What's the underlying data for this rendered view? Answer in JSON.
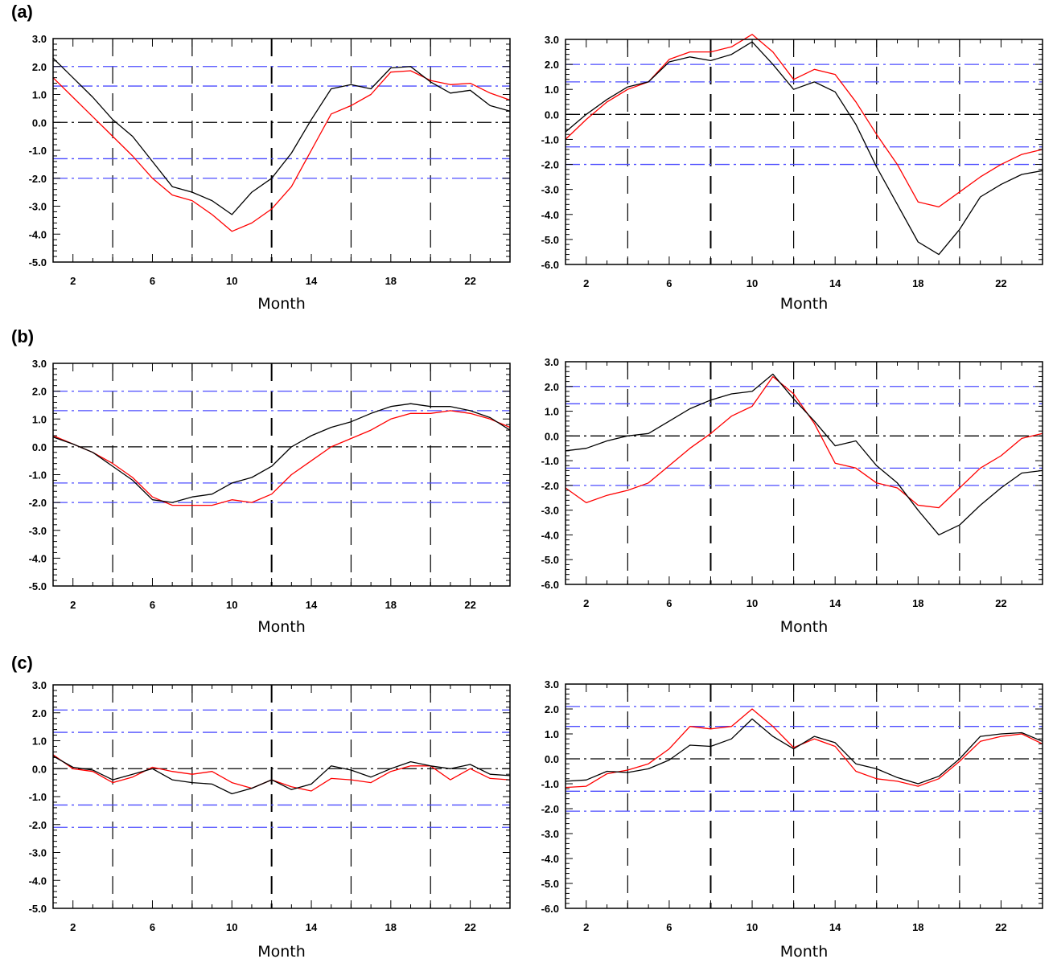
{
  "figure": {
    "row_labels": [
      "(a)",
      "(b)",
      "(c)"
    ]
  },
  "chart_data": [
    {
      "type": "line",
      "row": 0,
      "col": 0,
      "x": [
        1,
        2,
        3,
        4,
        5,
        6,
        7,
        8,
        9,
        10,
        11,
        12,
        13,
        14,
        15,
        16,
        17,
        18,
        19,
        20,
        21,
        22,
        23,
        24
      ],
      "xlim": [
        1,
        24
      ],
      "xticks": [
        2,
        6,
        10,
        14,
        18,
        22
      ],
      "xlabel": "Month",
      "ylim": [
        -5,
        3
      ],
      "yticks": [
        -5,
        -4,
        -3,
        -2,
        -1,
        0,
        1,
        2,
        3
      ],
      "ytick_labels": [
        "-5.0",
        "-4.0",
        "-3.0",
        "-2.0",
        "-1.0",
        "0.0",
        "1.0",
        "2.0",
        "3.0"
      ],
      "series": [
        {
          "color": "#ff0000",
          "values": [
            1.6,
            0.9,
            0.2,
            -0.5,
            -1.2,
            -2.0,
            -2.6,
            -2.8,
            -3.3,
            -3.9,
            -3.6,
            -3.1,
            -2.3,
            -1.0,
            0.3,
            0.6,
            1.0,
            1.8,
            1.85,
            1.5,
            1.35,
            1.4,
            1.05,
            0.8
          ]
        },
        {
          "color": "#000000",
          "values": [
            2.3,
            1.6,
            0.9,
            0.1,
            -0.5,
            -1.4,
            -2.3,
            -2.5,
            -2.8,
            -3.3,
            -2.5,
            -2.0,
            -1.1,
            0.1,
            1.2,
            1.35,
            1.2,
            1.95,
            2.0,
            1.45,
            1.05,
            1.15,
            0.6,
            0.4
          ]
        }
      ],
      "hlines": [
        {
          "y": 2.0,
          "color": "#4c4cff"
        },
        {
          "y": 1.3,
          "color": "#4c4cff"
        },
        {
          "y": 0.0,
          "color": "#000000"
        },
        {
          "y": -1.3,
          "color": "#4c4cff"
        },
        {
          "y": -2.0,
          "color": "#4c4cff"
        }
      ],
      "vlines": [
        4,
        8,
        12,
        16,
        20
      ]
    },
    {
      "type": "line",
      "row": 0,
      "col": 1,
      "x": [
        1,
        2,
        3,
        4,
        5,
        6,
        7,
        8,
        9,
        10,
        11,
        12,
        13,
        14,
        15,
        16,
        17,
        18,
        19,
        20,
        21,
        22,
        23,
        24
      ],
      "xlim": [
        1,
        24
      ],
      "xticks": [
        2,
        6,
        10,
        14,
        18,
        22
      ],
      "xlabel": "Month",
      "ylim": [
        -6,
        3
      ],
      "yticks": [
        -6,
        -5,
        -4,
        -3,
        -2,
        -1,
        0,
        1,
        2,
        3
      ],
      "ytick_labels": [
        "-6.0",
        "-5.0",
        "-4.0",
        "-3.0",
        "-2.0",
        "-1.0",
        "0.0",
        "1.0",
        "2.0",
        "3.0"
      ],
      "series": [
        {
          "color": "#ff0000",
          "values": [
            -1.0,
            -0.2,
            0.5,
            1.0,
            1.3,
            2.2,
            2.5,
            2.5,
            2.7,
            3.2,
            2.5,
            1.4,
            1.8,
            1.6,
            0.5,
            -0.8,
            -2.0,
            -3.5,
            -3.7,
            -3.1,
            -2.5,
            -2.0,
            -1.6,
            -1.4
          ]
        },
        {
          "color": "#000000",
          "values": [
            -0.7,
            0.0,
            0.6,
            1.1,
            1.3,
            2.1,
            2.3,
            2.15,
            2.4,
            2.9,
            2.0,
            1.0,
            1.3,
            0.9,
            -0.4,
            -2.1,
            -3.6,
            -5.1,
            -5.6,
            -4.6,
            -3.3,
            -2.8,
            -2.4,
            -2.25
          ]
        }
      ],
      "hlines": [
        {
          "y": 2.0,
          "color": "#4c4cff"
        },
        {
          "y": 1.3,
          "color": "#4c4cff"
        },
        {
          "y": 0.0,
          "color": "#000000"
        },
        {
          "y": -1.3,
          "color": "#4c4cff"
        },
        {
          "y": -2.0,
          "color": "#4c4cff"
        }
      ],
      "vlines": [
        4,
        8,
        12,
        16,
        20
      ]
    },
    {
      "type": "line",
      "row": 1,
      "col": 0,
      "x": [
        1,
        2,
        3,
        4,
        5,
        6,
        7,
        8,
        9,
        10,
        11,
        12,
        13,
        14,
        15,
        16,
        17,
        18,
        19,
        20,
        21,
        22,
        23,
        24
      ],
      "xlim": [
        1,
        24
      ],
      "xticks": [
        2,
        6,
        10,
        14,
        18,
        22
      ],
      "xlabel": "Month",
      "ylim": [
        -5,
        3
      ],
      "yticks": [
        -5,
        -4,
        -3,
        -2,
        -1,
        0,
        1,
        2,
        3
      ],
      "ytick_labels": [
        "-5.0",
        "-4.0",
        "-3.0",
        "-2.0",
        "-1.0",
        "0.0",
        "1.0",
        "2.0",
        "3.0"
      ],
      "series": [
        {
          "color": "#ff0000",
          "values": [
            0.4,
            0.1,
            -0.2,
            -0.6,
            -1.1,
            -1.8,
            -2.1,
            -2.1,
            -2.1,
            -1.9,
            -2.0,
            -1.7,
            -1.0,
            -0.5,
            0.0,
            0.3,
            0.6,
            1.0,
            1.2,
            1.2,
            1.3,
            1.2,
            1.0,
            0.7
          ]
        },
        {
          "color": "#000000",
          "values": [
            0.35,
            0.1,
            -0.2,
            -0.7,
            -1.2,
            -1.9,
            -2.0,
            -1.8,
            -1.7,
            -1.3,
            -1.1,
            -0.7,
            0.0,
            0.4,
            0.7,
            0.9,
            1.2,
            1.45,
            1.55,
            1.45,
            1.45,
            1.3,
            1.05,
            0.6
          ]
        }
      ],
      "hlines": [
        {
          "y": 2.0,
          "color": "#4c4cff"
        },
        {
          "y": 1.3,
          "color": "#4c4cff"
        },
        {
          "y": 0.0,
          "color": "#000000"
        },
        {
          "y": -1.3,
          "color": "#4c4cff"
        },
        {
          "y": -2.0,
          "color": "#4c4cff"
        }
      ],
      "vlines": [
        4,
        8,
        12,
        16,
        20
      ]
    },
    {
      "type": "line",
      "row": 1,
      "col": 1,
      "x": [
        1,
        2,
        3,
        4,
        5,
        6,
        7,
        8,
        9,
        10,
        11,
        12,
        13,
        14,
        15,
        16,
        17,
        18,
        19,
        20,
        21,
        22,
        23,
        24
      ],
      "xlim": [
        1,
        24
      ],
      "xticks": [
        2,
        6,
        10,
        14,
        18,
        22
      ],
      "xlabel": "Month",
      "ylim": [
        -6,
        3
      ],
      "yticks": [
        -6,
        -5,
        -4,
        -3,
        -2,
        -1,
        0,
        1,
        2,
        3
      ],
      "ytick_labels": [
        "-6.0",
        "-5.0",
        "-4.0",
        "-3.0",
        "-2.0",
        "-1.0",
        "0.0",
        "1.0",
        "2.0",
        "3.0"
      ],
      "series": [
        {
          "color": "#ff0000",
          "values": [
            -2.1,
            -2.7,
            -2.4,
            -2.2,
            -1.9,
            -1.2,
            -0.5,
            0.1,
            0.8,
            1.2,
            2.4,
            1.7,
            0.5,
            -1.1,
            -1.3,
            -1.9,
            -2.1,
            -2.8,
            -2.9,
            -2.1,
            -1.3,
            -0.8,
            -0.1,
            0.1
          ]
        },
        {
          "color": "#000000",
          "values": [
            -0.6,
            -0.5,
            -0.2,
            0.0,
            0.1,
            0.6,
            1.1,
            1.45,
            1.7,
            1.8,
            2.5,
            1.5,
            0.6,
            -0.4,
            -0.2,
            -1.2,
            -1.9,
            -3.0,
            -4.0,
            -3.6,
            -2.8,
            -2.1,
            -1.5,
            -1.4
          ]
        }
      ],
      "hlines": [
        {
          "y": 2.0,
          "color": "#4c4cff"
        },
        {
          "y": 1.3,
          "color": "#4c4cff"
        },
        {
          "y": 0.0,
          "color": "#000000"
        },
        {
          "y": -1.3,
          "color": "#4c4cff"
        },
        {
          "y": -2.0,
          "color": "#4c4cff"
        }
      ],
      "vlines": [
        4,
        8,
        12,
        16,
        20
      ]
    },
    {
      "type": "line",
      "row": 2,
      "col": 0,
      "x": [
        1,
        2,
        3,
        4,
        5,
        6,
        7,
        8,
        9,
        10,
        11,
        12,
        13,
        14,
        15,
        16,
        17,
        18,
        19,
        20,
        21,
        22,
        23,
        24
      ],
      "xlim": [
        1,
        24
      ],
      "xticks": [
        2,
        6,
        10,
        14,
        18,
        22
      ],
      "xlabel": "Month",
      "ylim": [
        -5,
        3
      ],
      "yticks": [
        -5,
        -4,
        -3,
        -2,
        -1,
        0,
        1,
        2,
        3
      ],
      "ytick_labels": [
        "-5.0",
        "-4.0",
        "-3.0",
        "-2.0",
        "-1.0",
        "0.0",
        "1.0",
        "2.0",
        "3.0"
      ],
      "series": [
        {
          "color": "#ff0000",
          "values": [
            0.5,
            0.0,
            -0.1,
            -0.5,
            -0.3,
            0.05,
            -0.1,
            -0.2,
            -0.1,
            -0.5,
            -0.7,
            -0.4,
            -0.65,
            -0.8,
            -0.35,
            -0.4,
            -0.5,
            -0.1,
            0.1,
            0.1,
            -0.4,
            0.0,
            -0.35,
            -0.4
          ]
        },
        {
          "color": "#000000",
          "values": [
            0.45,
            0.05,
            -0.05,
            -0.4,
            -0.2,
            0.0,
            -0.4,
            -0.5,
            -0.55,
            -0.9,
            -0.7,
            -0.4,
            -0.75,
            -0.55,
            0.1,
            -0.05,
            -0.3,
            0.0,
            0.25,
            0.1,
            0.0,
            0.15,
            -0.2,
            -0.25
          ]
        }
      ],
      "hlines": [
        {
          "y": 2.1,
          "color": "#4c4cff"
        },
        {
          "y": 1.3,
          "color": "#4c4cff"
        },
        {
          "y": 0.0,
          "color": "#000000"
        },
        {
          "y": -1.3,
          "color": "#4c4cff"
        },
        {
          "y": -2.1,
          "color": "#4c4cff"
        }
      ],
      "vlines": [
        4,
        8,
        12,
        16,
        20
      ]
    },
    {
      "type": "line",
      "row": 2,
      "col": 1,
      "x": [
        1,
        2,
        3,
        4,
        5,
        6,
        7,
        8,
        9,
        10,
        11,
        12,
        13,
        14,
        15,
        16,
        17,
        18,
        19,
        20,
        21,
        22,
        23,
        24
      ],
      "xlim": [
        1,
        24
      ],
      "xticks": [
        2,
        6,
        10,
        14,
        18,
        22
      ],
      "xlabel": "Month",
      "ylim": [
        -6,
        3
      ],
      "yticks": [
        -6,
        -5,
        -4,
        -3,
        -2,
        -1,
        0,
        1,
        2,
        3
      ],
      "ytick_labels": [
        "-6.0",
        "-5.0",
        "-4.0",
        "-3.0",
        "-2.0",
        "-1.0",
        "0.0",
        "1.0",
        "2.0",
        "3.0"
      ],
      "series": [
        {
          "color": "#ff0000",
          "values": [
            -1.15,
            -1.1,
            -0.6,
            -0.45,
            -0.2,
            0.4,
            1.3,
            1.2,
            1.3,
            2.0,
            1.3,
            0.45,
            0.8,
            0.5,
            -0.5,
            -0.8,
            -0.9,
            -1.1,
            -0.8,
            -0.1,
            0.7,
            0.9,
            1.0,
            0.6
          ]
        },
        {
          "color": "#000000",
          "values": [
            -0.9,
            -0.85,
            -0.5,
            -0.55,
            -0.4,
            -0.05,
            0.55,
            0.5,
            0.8,
            1.6,
            0.9,
            0.4,
            0.9,
            0.65,
            -0.2,
            -0.4,
            -0.75,
            -1.0,
            -0.7,
            0.0,
            0.9,
            1.0,
            1.05,
            0.7
          ]
        }
      ],
      "hlines": [
        {
          "y": 2.1,
          "color": "#4c4cff"
        },
        {
          "y": 1.3,
          "color": "#4c4cff"
        },
        {
          "y": 0.0,
          "color": "#000000"
        },
        {
          "y": -1.3,
          "color": "#4c4cff"
        },
        {
          "y": -2.1,
          "color": "#4c4cff"
        }
      ],
      "vlines": [
        4,
        8,
        12,
        16,
        20
      ]
    }
  ]
}
